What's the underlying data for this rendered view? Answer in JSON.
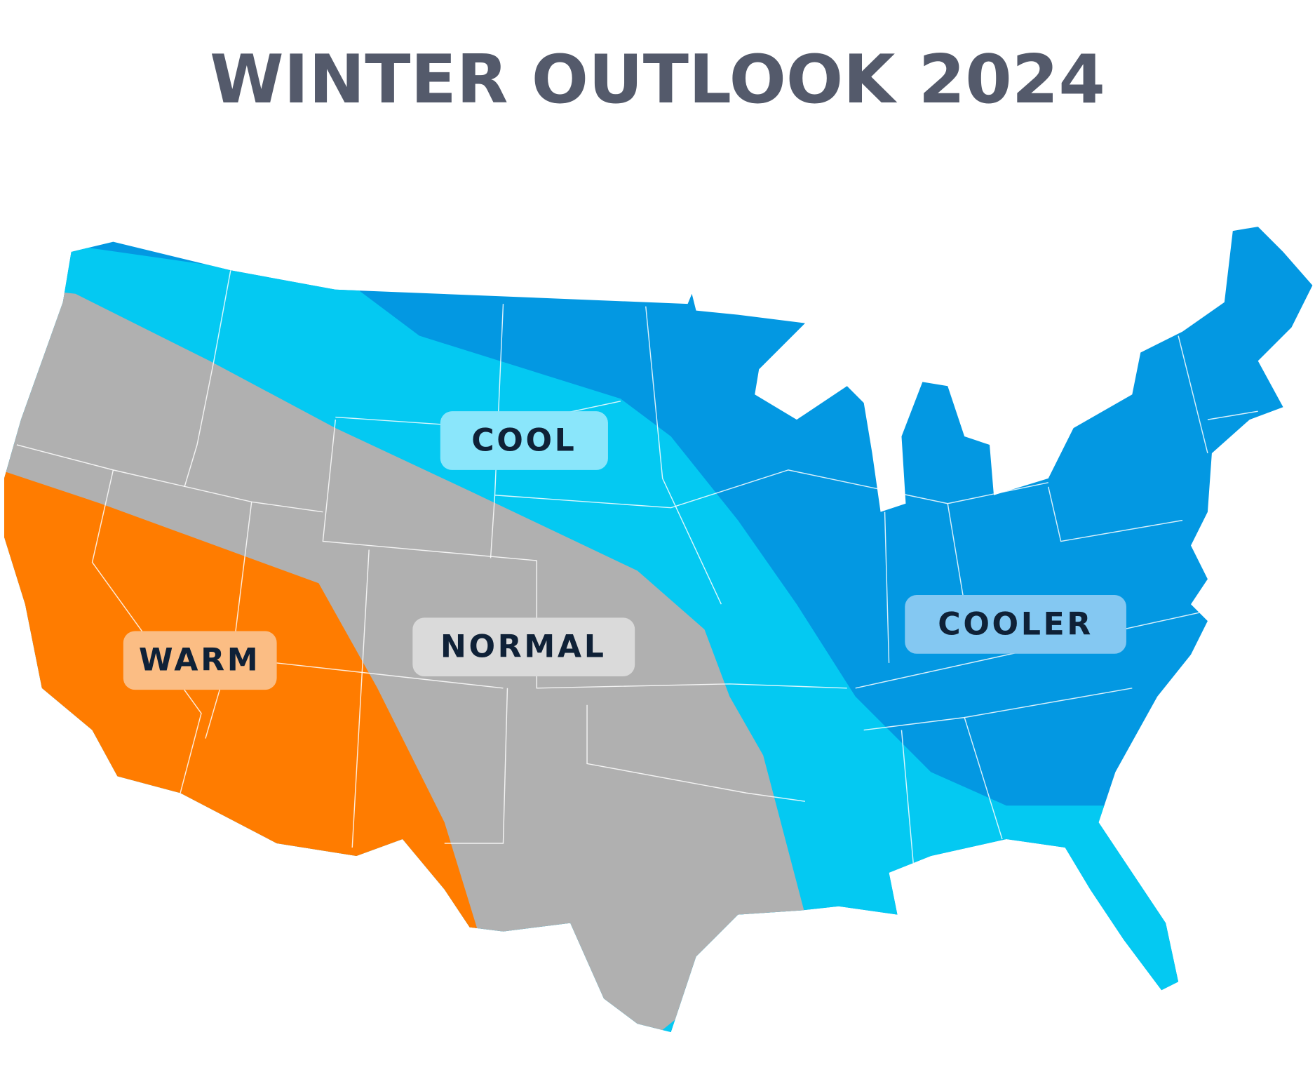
{
  "title": "WINTER OUTLOOK 2024",
  "regions": [
    {
      "label": "COOL"
    },
    {
      "label": "NORMAL"
    },
    {
      "label": "WARM"
    },
    {
      "label": "COOLER"
    }
  ]
}
